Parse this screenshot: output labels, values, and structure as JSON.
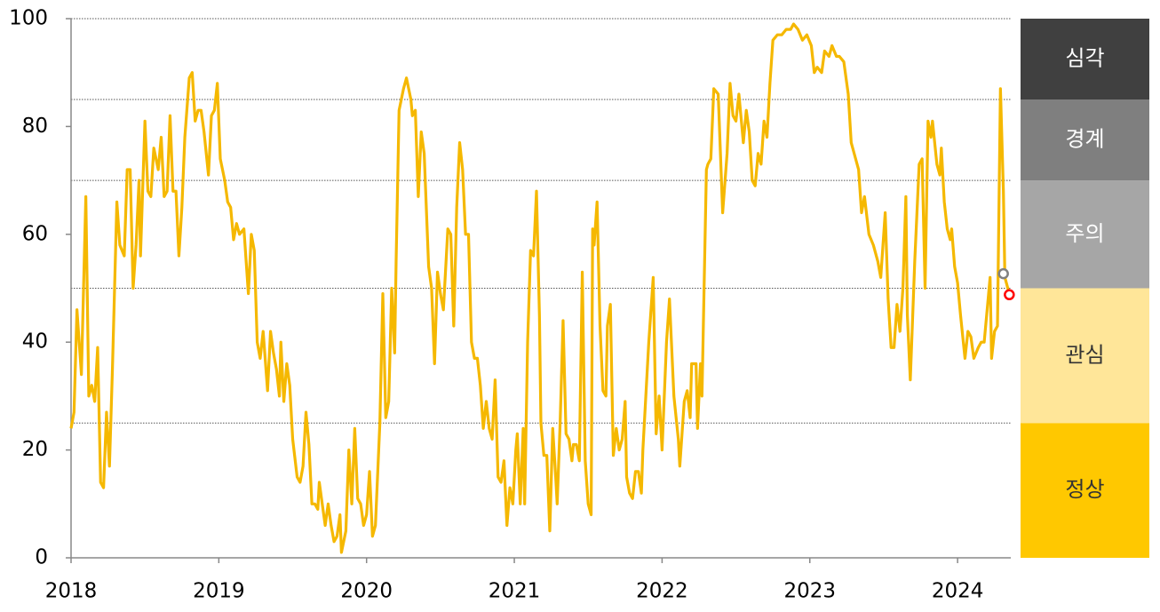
{
  "chart_data": {
    "type": "line",
    "x": [
      2018.0,
      2018.02,
      2018.04,
      2018.07,
      2018.1,
      2018.12,
      2018.14,
      2018.16,
      2018.18,
      2018.2,
      2018.22,
      2018.24,
      2018.26,
      2018.28,
      2018.31,
      2018.33,
      2018.36,
      2018.38,
      2018.4,
      2018.42,
      2018.44,
      2018.46,
      2018.47,
      2018.5,
      2018.52,
      2018.54,
      2018.56,
      2018.59,
      2018.61,
      2018.63,
      2018.65,
      2018.67,
      2018.69,
      2018.71,
      2018.73,
      2018.75,
      2018.77,
      2018.8,
      2018.82,
      2018.84,
      2018.86,
      2018.88,
      2018.9,
      2018.93,
      2018.95,
      2018.97,
      2018.99,
      2019.01,
      2019.04,
      2019.06,
      2019.08,
      2019.1,
      2019.12,
      2019.14,
      2019.17,
      2019.2,
      2019.22,
      2019.24,
      2019.26,
      2019.28,
      2019.3,
      2019.33,
      2019.35,
      2019.37,
      2019.39,
      2019.41,
      2019.42,
      2019.44,
      2019.46,
      2019.48,
      2019.5,
      2019.53,
      2019.55,
      2019.57,
      2019.59,
      2019.61,
      2019.63,
      2019.65,
      2019.67,
      2019.68,
      2019.7,
      2019.72,
      2019.74,
      2019.76,
      2019.78,
      2019.8,
      2019.82,
      2019.83,
      2019.86,
      2019.88,
      2019.9,
      2019.92,
      2019.94,
      2019.96,
      2019.98,
      2020.0,
      2020.02,
      2020.04,
      2020.06,
      2020.09,
      2020.11,
      2020.13,
      2020.15,
      2020.17,
      2020.19,
      2020.2,
      2020.22,
      2020.25,
      2020.27,
      2020.3,
      2020.31,
      2020.33,
      2020.35,
      2020.37,
      2020.39,
      2020.42,
      2020.44,
      2020.46,
      2020.48,
      2020.5,
      2020.52,
      2020.55,
      2020.57,
      2020.59,
      2020.61,
      2020.63,
      2020.65,
      2020.67,
      2020.69,
      2020.71,
      2020.73,
      2020.75,
      2020.77,
      2020.79,
      2020.81,
      2020.83,
      2020.85,
      2020.87,
      2020.89,
      2020.91,
      2020.93,
      2020.95,
      2020.97,
      2020.99,
      2021.01,
      2021.02,
      2021.04,
      2021.06,
      2021.07,
      2021.09,
      2021.11,
      2021.13,
      2021.15,
      2021.17,
      2021.18,
      2021.2,
      2021.22,
      2021.24,
      2021.26,
      2021.28,
      2021.29,
      2021.31,
      2021.33,
      2021.35,
      2021.37,
      2021.39,
      2021.4,
      2021.42,
      2021.44,
      2021.46,
      2021.48,
      2021.5,
      2021.52,
      2021.53,
      2021.54,
      2021.56,
      2021.58,
      2021.6,
      2021.62,
      2021.63,
      2021.65,
      2021.67,
      2021.69,
      2021.71,
      2021.73,
      2021.75,
      2021.76,
      2021.78,
      2021.8,
      2021.82,
      2021.84,
      2021.86,
      2021.87,
      2021.89,
      2021.91,
      2021.94,
      2021.96,
      2021.98,
      2022.0,
      2022.03,
      2022.05,
      2022.08,
      2022.11,
      2022.12,
      2022.15,
      2022.17,
      2022.19,
      2022.2,
      2022.23,
      2022.24,
      2022.26,
      2022.27,
      2022.3,
      2022.31,
      2022.33,
      2022.35,
      2022.38,
      2022.41,
      2022.44,
      2022.46,
      2022.48,
      2022.5,
      2022.52,
      2022.55,
      2022.57,
      2022.59,
      2022.61,
      2022.63,
      2022.65,
      2022.67,
      2022.69,
      2022.71,
      2022.73,
      2022.75,
      2022.78,
      2022.81,
      2022.84,
      2022.87,
      2022.89,
      2022.92,
      2022.95,
      2022.98,
      2023.01,
      2023.03,
      2023.05,
      2023.08,
      2023.1,
      2023.13,
      2023.15,
      2023.18,
      2023.2,
      2023.23,
      2023.26,
      2023.28,
      2023.3,
      2023.33,
      2023.35,
      2023.37,
      2023.4,
      2023.43,
      2023.46,
      2023.48,
      2023.51,
      2023.53,
      2023.55,
      2023.57,
      2023.59,
      2023.61,
      2023.63,
      2023.65,
      2023.66,
      2023.68,
      2023.71,
      2023.74,
      2023.76,
      2023.78,
      2023.8,
      2023.82,
      2023.83,
      2023.86,
      2023.88,
      2023.89,
      2023.91,
      2023.93,
      2023.95,
      2023.96,
      2023.98,
      2024.0,
      2024.02,
      2024.05,
      2024.07,
      2024.09,
      2024.11,
      2024.14,
      2024.16,
      2024.18,
      2024.2,
      2024.22,
      2024.23,
      2024.25,
      2024.27,
      2024.29,
      2024.31,
      2024.32,
      2024.35
    ],
    "series": [
      {
        "color": "#f5b800",
        "values": [
          24,
          27,
          46,
          34,
          67,
          30,
          32,
          29,
          39,
          14,
          13,
          27,
          17,
          35,
          66,
          58,
          56,
          72,
          72,
          50,
          58,
          70,
          56,
          81,
          68,
          67,
          76,
          72,
          78,
          67,
          68,
          82,
          68,
          68,
          56,
          65,
          78,
          89,
          90,
          81,
          83,
          83,
          79,
          71,
          82,
          83,
          88,
          74,
          70,
          66,
          65,
          59,
          62,
          60,
          61,
          49,
          60,
          57,
          40,
          37,
          42,
          31,
          42,
          38,
          35,
          30,
          40,
          29,
          36,
          32,
          22,
          15,
          14,
          17,
          27,
          21,
          10,
          10,
          9,
          14,
          10,
          6,
          10,
          6,
          3,
          4,
          8,
          1,
          5,
          20,
          10,
          24,
          11,
          10,
          6,
          8,
          16,
          4,
          6,
          25,
          49,
          26,
          29,
          50,
          38,
          55,
          83,
          87,
          89,
          85,
          82,
          83,
          67,
          79,
          75,
          54,
          50,
          36,
          53,
          49,
          46,
          61,
          60,
          43,
          65,
          77,
          72,
          60,
          60,
          40,
          37,
          37,
          32,
          24,
          29,
          24,
          22,
          33,
          15,
          14,
          18,
          6,
          13,
          10,
          20,
          23,
          10,
          24,
          10,
          40,
          57,
          56,
          68,
          45,
          25,
          19,
          19,
          5,
          24,
          15,
          10,
          25,
          44,
          23,
          22,
          18,
          21,
          21,
          18,
          53,
          18,
          10,
          8,
          61,
          58,
          66,
          43,
          31,
          30,
          43,
          47,
          19,
          24,
          20,
          22,
          29,
          15,
          12,
          11,
          16,
          16,
          12,
          20,
          30,
          40,
          52,
          23,
          30,
          20,
          40,
          48,
          30,
          22,
          17,
          29,
          31,
          26,
          36,
          36,
          24,
          36,
          30,
          72,
          73,
          74,
          87,
          86,
          64,
          75,
          88,
          82,
          81,
          86,
          77,
          83,
          79,
          70,
          69,
          75,
          73,
          81,
          78,
          88,
          96,
          97,
          97,
          98,
          98,
          99,
          98,
          96,
          97,
          95,
          90,
          91,
          90,
          94,
          93,
          95,
          93,
          93,
          92,
          86,
          77,
          75,
          72,
          64,
          67,
          60,
          58,
          55,
          52,
          64,
          48,
          39,
          39,
          47,
          42,
          50,
          67,
          45,
          33,
          55,
          73,
          74,
          50,
          81,
          78,
          81,
          73,
          71,
          76,
          66,
          61,
          59,
          61,
          54,
          51,
          45,
          37,
          42,
          41,
          37,
          39,
          40,
          40,
          46,
          52,
          37,
          42,
          43,
          87,
          68,
          52,
          49
        ]
      }
    ],
    "markers": [
      {
        "x": 2024.31,
        "y": 52.7,
        "color": "#808080"
      },
      {
        "x": 2024.35,
        "y": 48.8,
        "color": "#ff0000"
      }
    ],
    "zones": [
      {
        "label": "정상",
        "from": 0,
        "to": 25,
        "color": "#ffc800"
      },
      {
        "label": "관심",
        "from": 25,
        "to": 50,
        "color": "#ffe699"
      },
      {
        "label": "주의",
        "from": 50,
        "to": 70,
        "color": "#a6a6a6"
      },
      {
        "label": "경계",
        "from": 70,
        "to": 85,
        "color": "#7f7f7f"
      },
      {
        "label": "심각",
        "from": 85,
        "to": 100,
        "color": "#404040"
      }
    ],
    "xlim": [
      2018,
      2024.36
    ],
    "xticks": [
      2018,
      2019,
      2020,
      2021,
      2022,
      2023,
      2024
    ],
    "ylim": [
      0,
      100
    ],
    "yticks": [
      0,
      20,
      40,
      60,
      80,
      100
    ]
  }
}
